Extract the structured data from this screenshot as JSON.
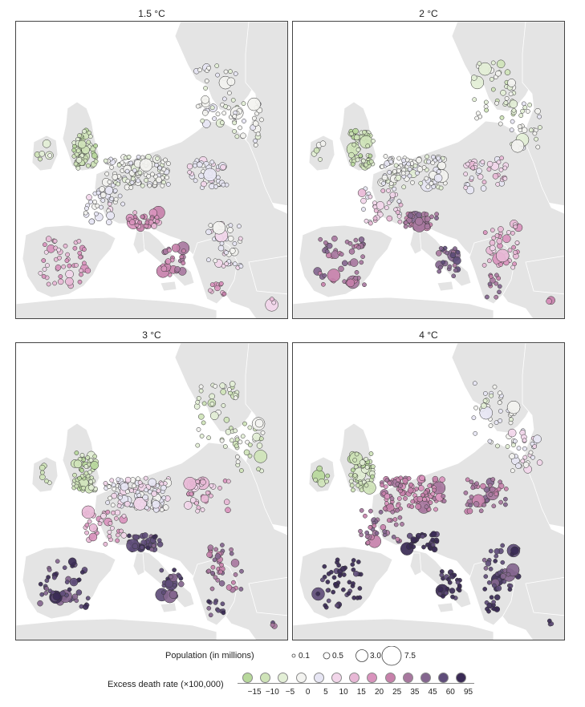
{
  "panels": [
    {
      "title": "1.5 °C",
      "scenario": 1.5
    },
    {
      "title": "2 °C",
      "scenario": 2
    },
    {
      "title": "3 °C",
      "scenario": 3
    },
    {
      "title": "4 °C",
      "scenario": 4
    }
  ],
  "legend": {
    "population_label": "Population (in millions)",
    "population_values": [
      "0.1",
      "0.5",
      "3.0",
      "7.5"
    ],
    "rate_label": "Excess death rate (×100,000)",
    "rate_ticks": [
      "−15",
      "−10",
      "−5",
      "0",
      "5",
      "10",
      "15",
      "20",
      "25",
      "35",
      "45",
      "60",
      "95"
    ],
    "rate_colors": [
      "#b7d89b",
      "#cfe4b8",
      "#e3efd6",
      "#f3f3f0",
      "#e7e6f4",
      "#f2d6ea",
      "#e8b8d6",
      "#d993bd",
      "#c781ab",
      "#a8789f",
      "#84668f",
      "#5f4d7a",
      "#3a2a55"
    ]
  },
  "map_colors": {
    "land": "#e4e4e4",
    "sea": "#ffffff",
    "outline": "#ffffff"
  }
}
